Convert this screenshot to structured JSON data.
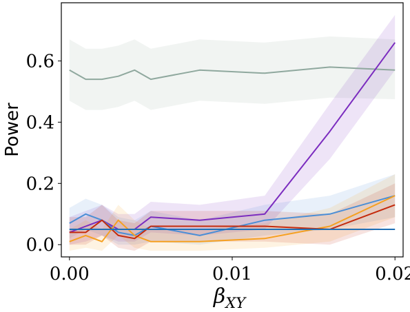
{
  "chart_data": {
    "type": "line",
    "xlabel": "β_XY",
    "xlabel_main": "β",
    "xlabel_sub": "XY",
    "ylabel": "Power",
    "xlim": [
      -0.0005,
      0.0205
    ],
    "ylim": [
      -0.04,
      0.79
    ],
    "xticks": [
      0,
      0.01,
      0.02
    ],
    "xtick_labels": [
      "0.00",
      "0.01",
      "0.02"
    ],
    "yticks": [
      0,
      0.2,
      0.4,
      0.6
    ],
    "ytick_labels": [
      "0.0",
      "0.2",
      "0.4",
      "0.6"
    ],
    "grid": false,
    "legend": false,
    "series": [
      {
        "color": "#8fa89e",
        "x": [
          0,
          0.001,
          0.002,
          0.003,
          0.004,
          0.005,
          0.008,
          0.012,
          0.016,
          0.02
        ],
        "y": [
          0.57,
          0.54,
          0.54,
          0.55,
          0.57,
          0.54,
          0.57,
          0.56,
          0.58,
          0.57
        ],
        "lower": [
          0.47,
          0.44,
          0.44,
          0.45,
          0.47,
          0.44,
          0.47,
          0.46,
          0.48,
          0.475
        ],
        "upper": [
          0.67,
          0.64,
          0.64,
          0.65,
          0.67,
          0.64,
          0.67,
          0.66,
          0.68,
          0.67
        ]
      },
      {
        "color": "#7b2cbf",
        "x": [
          0,
          0.001,
          0.002,
          0.003,
          0.004,
          0.005,
          0.008,
          0.012,
          0.016,
          0.02
        ],
        "y": [
          0.04,
          0.06,
          0.08,
          0.05,
          0.05,
          0.09,
          0.08,
          0.1,
          0.37,
          0.66
        ],
        "lower": [
          0.0,
          0.01,
          0.03,
          0.01,
          0.01,
          0.04,
          0.03,
          0.05,
          0.28,
          0.57
        ],
        "upper": [
          0.09,
          0.11,
          0.13,
          0.1,
          0.1,
          0.14,
          0.13,
          0.16,
          0.46,
          0.75
        ]
      },
      {
        "color": "#4a8ed6",
        "x": [
          0,
          0.001,
          0.002,
          0.003,
          0.004,
          0.005,
          0.008,
          0.012,
          0.016,
          0.02
        ],
        "y": [
          0.07,
          0.1,
          0.08,
          0.04,
          0.03,
          0.06,
          0.03,
          0.08,
          0.1,
          0.16
        ],
        "lower": [
          0.02,
          0.05,
          0.03,
          0.0,
          0.0,
          0.01,
          0.0,
          0.03,
          0.05,
          0.09
        ],
        "upper": [
          0.12,
          0.15,
          0.13,
          0.09,
          0.08,
          0.11,
          0.08,
          0.13,
          0.16,
          0.23
        ]
      },
      {
        "color": "#f5a020",
        "x": [
          0,
          0.001,
          0.002,
          0.003,
          0.004,
          0.005,
          0.008,
          0.012,
          0.016,
          0.02
        ],
        "y": [
          0.01,
          0.03,
          0.01,
          0.08,
          0.03,
          0.01,
          0.01,
          0.02,
          0.06,
          0.16
        ],
        "lower": [
          -0.02,
          -0.01,
          -0.02,
          0.03,
          -0.01,
          -0.02,
          -0.02,
          -0.01,
          0.01,
          0.09
        ],
        "upper": [
          0.05,
          0.08,
          0.05,
          0.13,
          0.08,
          0.05,
          0.05,
          0.07,
          0.12,
          0.23
        ]
      },
      {
        "color": "#c42a0c",
        "x": [
          0,
          0.001,
          0.002,
          0.003,
          0.004,
          0.005,
          0.008,
          0.012,
          0.016,
          0.02
        ],
        "y": [
          0.04,
          0.04,
          0.08,
          0.03,
          0.02,
          0.06,
          0.06,
          0.06,
          0.05,
          0.13
        ],
        "lower": [
          0.0,
          0.0,
          0.03,
          -0.01,
          -0.02,
          0.01,
          0.01,
          0.01,
          0.0,
          0.07
        ],
        "upper": [
          0.09,
          0.09,
          0.13,
          0.08,
          0.07,
          0.11,
          0.11,
          0.11,
          0.1,
          0.2
        ]
      },
      {
        "color": "#1f6fb5",
        "x": [
          0,
          0.001,
          0.002,
          0.003,
          0.004,
          0.005,
          0.008,
          0.012,
          0.016,
          0.02
        ],
        "y": [
          0.05,
          0.05,
          0.05,
          0.05,
          0.05,
          0.05,
          0.05,
          0.05,
          0.05,
          0.05
        ]
      }
    ]
  }
}
